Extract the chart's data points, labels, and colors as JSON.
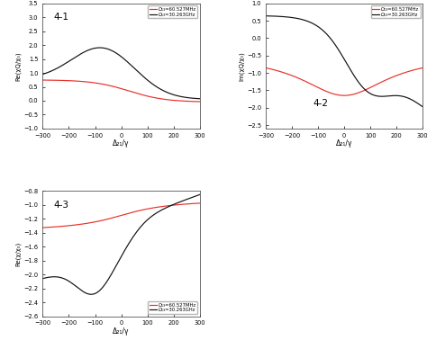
{
  "title41": "4-1",
  "title42": "4-2",
  "title43": "4-3",
  "legend_red": "Ω₁₃=60.527MHz",
  "legend_black": "Ω₁₃=30.263GHz",
  "xlabel41": "Δ₂₁/γ",
  "xlabel42": "Δ₂₁/γ",
  "xlabel43": "Δ₂₁/γ",
  "ylabel41": "Re(χQ/χ₀)",
  "ylabel42": "Im(χQ/χ₀)",
  "ylabel43": "Re(χ/χ₀)",
  "xlim": [
    -300,
    300
  ],
  "ylim41": [
    -1.0,
    3.5
  ],
  "ylim42": [
    -2.6,
    1.0
  ],
  "ylim43": [
    -2.6,
    -0.8
  ],
  "color_red": "#e8302a",
  "color_black": "#111111",
  "bg_color": "#ffffff"
}
